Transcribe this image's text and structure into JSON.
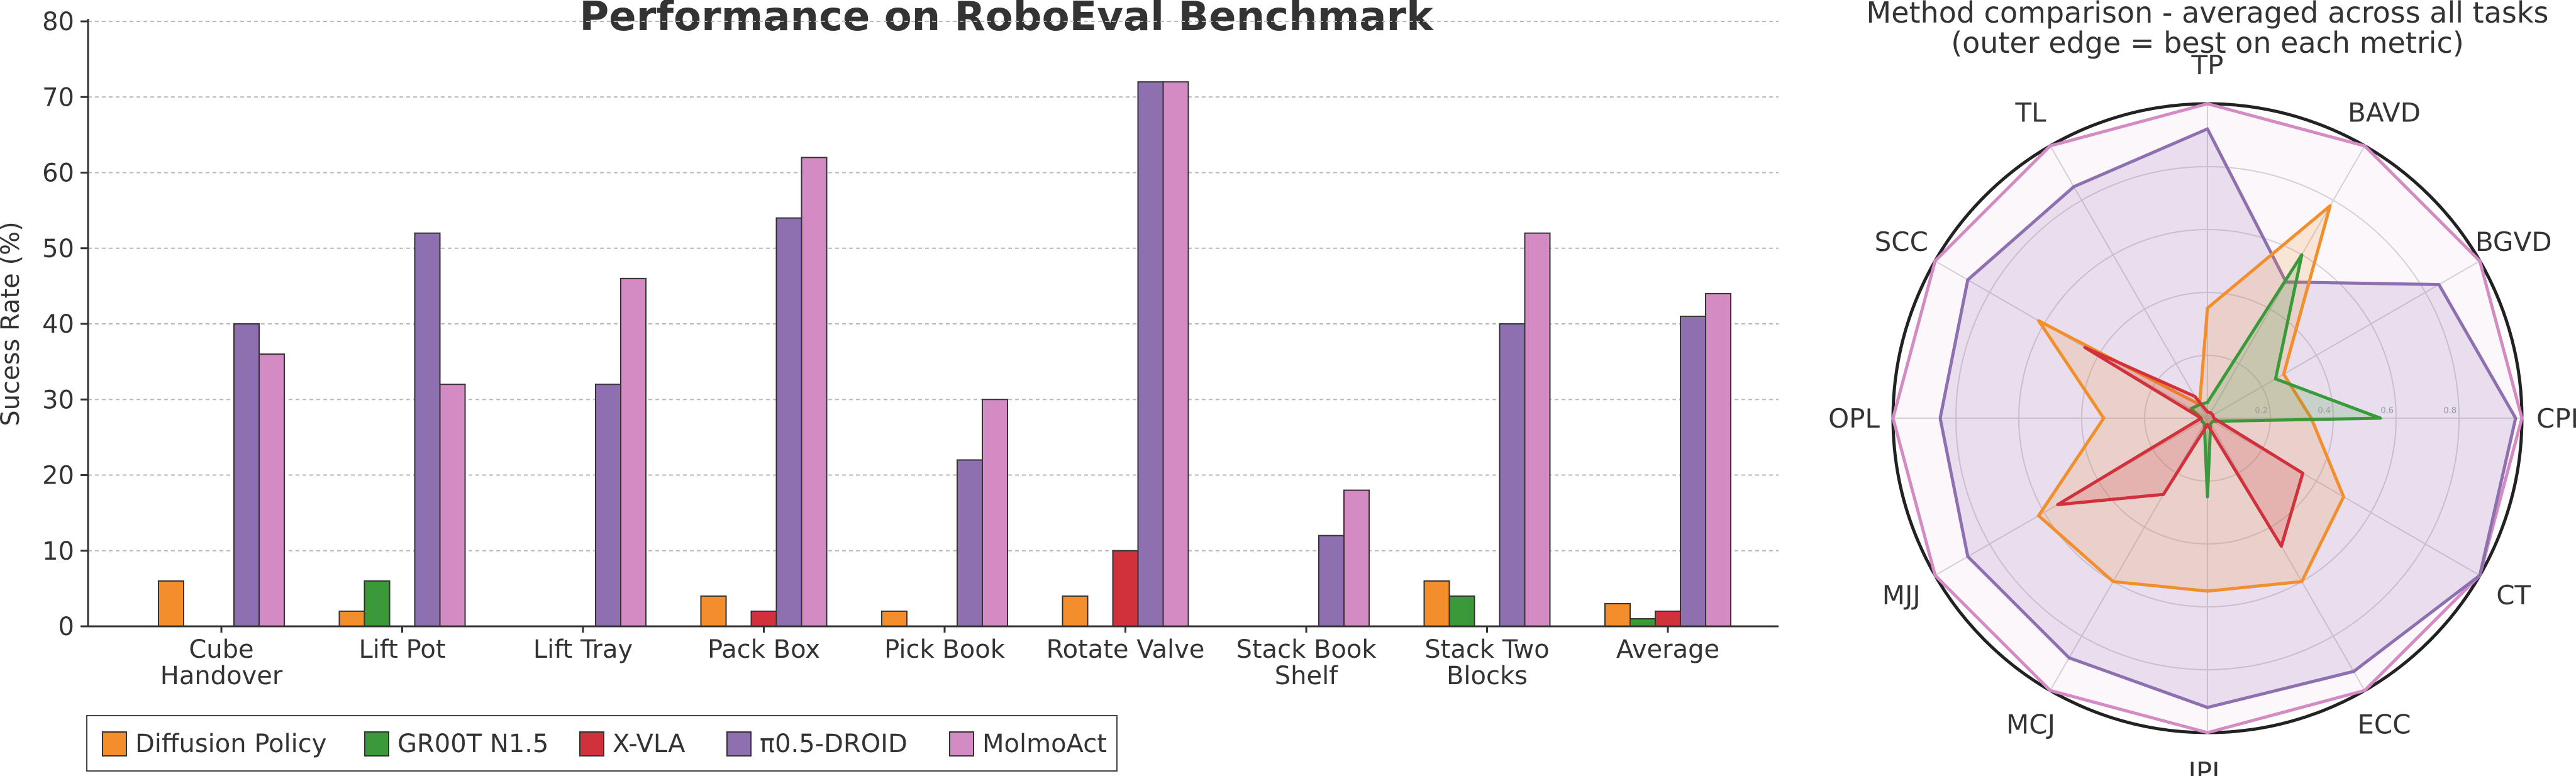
{
  "chart_data": [
    {
      "type": "bar",
      "title": "Performance on RoboEval Benchmark",
      "ylabel": "Sucess Rate (%)",
      "xlabel": "",
      "ylim": [
        0,
        80
      ],
      "yticks": [
        0,
        10,
        20,
        30,
        40,
        50,
        60,
        70,
        80
      ],
      "grid": true,
      "legend_position": "bottom-left",
      "categories": [
        [
          "Cube",
          "Handover"
        ],
        [
          "Lift Pot"
        ],
        [
          "Lift Tray"
        ],
        [
          "Pack Box"
        ],
        [
          "Pick Book"
        ],
        [
          "Rotate Valve"
        ],
        [
          "Stack Book",
          "Shelf"
        ],
        [
          "Stack Two",
          "Blocks"
        ],
        [
          "Average"
        ]
      ],
      "series": [
        {
          "name": "Diffusion Policy",
          "color": "#F28E2B",
          "values": [
            6,
            2,
            0,
            4,
            2,
            4,
            0,
            6,
            3
          ]
        },
        {
          "name": "GR00T N1.5",
          "color": "#3A9A3A",
          "values": [
            0,
            6,
            0,
            0,
            0,
            0,
            0,
            4,
            1
          ]
        },
        {
          "name": "X-VLA",
          "color": "#D0313A",
          "values": [
            0,
            0,
            0,
            2,
            0,
            10,
            0,
            0,
            2
          ]
        },
        {
          "name": "π0.5-DROID",
          "color": "#8E70B0",
          "values": [
            40,
            52,
            32,
            54,
            22,
            72,
            12,
            40,
            41
          ]
        },
        {
          "name": "MolmoAct",
          "color": "#D48BC4",
          "values": [
            36,
            32,
            46,
            62,
            30,
            72,
            18,
            52,
            44
          ]
        }
      ]
    },
    {
      "type": "radar",
      "title": [
        "Method comparison - averaged across all tasks",
        "(outer edge = best on each metric)"
      ],
      "axes": [
        "TP",
        "BAVD",
        "BGVD",
        "CPL",
        "CT",
        "ECC",
        "JPL",
        "MCJ",
        "MJJ",
        "OPL",
        "SCC",
        "TL"
      ],
      "rlim": [
        0,
        1
      ],
      "ring_labels": [
        "0.2",
        "0.4",
        "0.6",
        "0.8"
      ],
      "series": [
        {
          "name": "Diffusion Policy",
          "color": "#F28E2B",
          "values": [
            0.35,
            0.78,
            0.28,
            0.33,
            0.5,
            0.6,
            0.55,
            0.6,
            0.62,
            0.33,
            0.62,
            0.05
          ]
        },
        {
          "name": "GR00T N1.5",
          "color": "#3A9A3A",
          "values": [
            0.05,
            0.6,
            0.25,
            0.55,
            0.02,
            0.02,
            0.25,
            0.02,
            0.02,
            0.02,
            0.06,
            0.05
          ]
        },
        {
          "name": "X-VLA",
          "color": "#D0313A",
          "values": [
            0.02,
            0.02,
            0.02,
            0.02,
            0.35,
            0.47,
            0.02,
            0.28,
            0.55,
            0.02,
            0.45,
            0.08
          ]
        },
        {
          "name": "π0.5-DROID",
          "color": "#8E70B0",
          "values": [
            0.92,
            0.5,
            0.85,
            0.98,
            1.0,
            0.93,
            0.92,
            0.88,
            0.88,
            0.85,
            0.88,
            0.85
          ]
        },
        {
          "name": "MolmoAct",
          "color": "#D48BC4",
          "values": [
            1.0,
            1.0,
            1.0,
            1.0,
            1.0,
            1.0,
            1.0,
            1.0,
            1.0,
            1.0,
            1.0,
            1.0
          ]
        }
      ]
    }
  ]
}
